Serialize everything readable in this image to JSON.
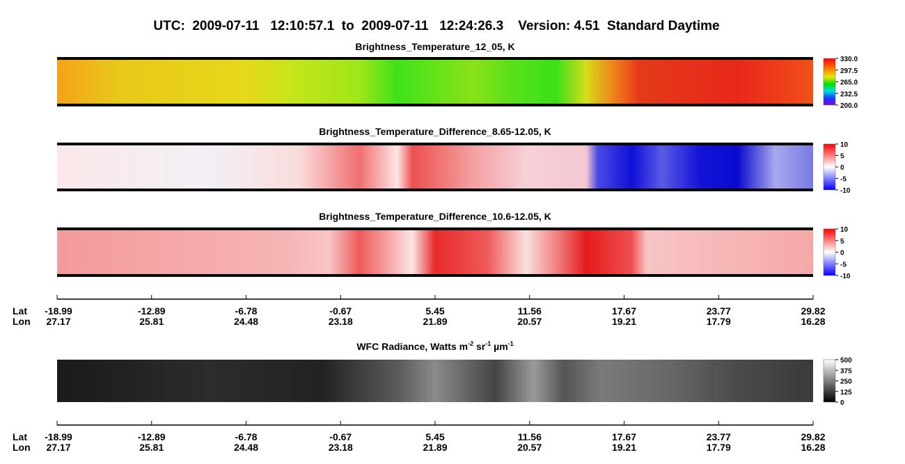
{
  "header": {
    "title": "UTC:  2009-07-11   12:10:57.1  to  2009-07-11   12:24:26.3    Version: 4.51  Standard Daytime"
  },
  "panels": [
    {
      "title": "Brightness_Temperature_12_05, K",
      "colorbar_ticks": [
        {
          "value": 330,
          "label": "330.0"
        },
        297.5,
        {
          "value": 265,
          "label": "265.0"
        },
        232.5,
        {
          "value": 200,
          "label": "200.0"
        }
      ]
    },
    {
      "title": "Brightness_Temperature_Difference_8.65-12.05, K",
      "colorbar_ticks": [
        10,
        5,
        0,
        -5,
        -10
      ]
    },
    {
      "title": "Brightness_Temperature_Difference_10.6-12.05, K",
      "colorbar_ticks": [
        10,
        5,
        0,
        -5,
        -10
      ]
    },
    {
      "title_parts": [
        "WFC Radiance, Watts m",
        "-2",
        " sr",
        "-1",
        " µm",
        "-1"
      ],
      "colorbar_ticks": [
        500,
        375,
        250,
        125,
        0
      ]
    }
  ],
  "axes": [
    {
      "lat_label": "Lat",
      "lon_label": "Lon",
      "lat": [
        -18.99,
        -12.89,
        -6.78,
        -0.67,
        5.45,
        11.56,
        17.67,
        23.77,
        29.82
      ],
      "lon": [
        27.17,
        25.81,
        24.48,
        23.18,
        21.89,
        20.57,
        19.21,
        17.79,
        16.28
      ]
    },
    {
      "lat_label": "Lat",
      "lon_label": "Lon",
      "lat": [
        -18.99,
        -12.89,
        -6.78,
        -0.67,
        5.45,
        11.56,
        17.67,
        23.77,
        29.82
      ],
      "lon": [
        27.17,
        25.81,
        24.48,
        23.18,
        21.89,
        20.57,
        19.21,
        17.79,
        16.28
      ]
    }
  ]
}
